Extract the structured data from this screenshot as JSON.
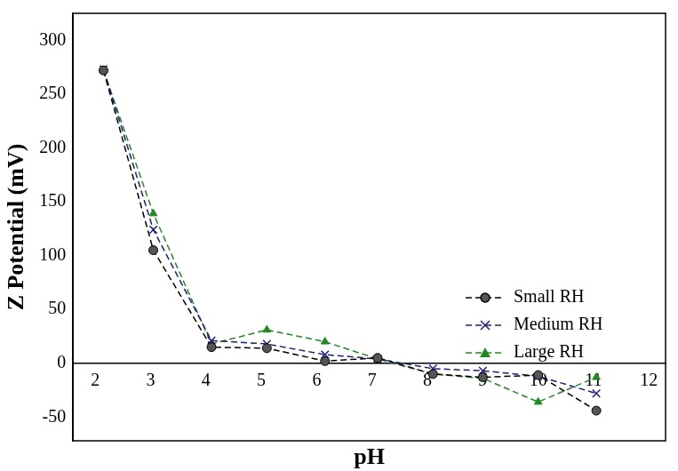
{
  "chart_data": {
    "type": "line",
    "x_label": "pH",
    "y_label": "Z Potential (mV)",
    "x": [
      2.15,
      3.05,
      4.1,
      5.1,
      6.15,
      7.1,
      8.1,
      9.0,
      10.0,
      11.05
    ],
    "series": [
      {
        "name": "Small RH",
        "color": "#000000",
        "marker": "circle",
        "line_style": "dashed",
        "values": [
          272,
          105,
          15,
          14,
          2,
          5,
          -10,
          -13,
          -11,
          -44
        ]
      },
      {
        "name": "Medium RH",
        "color": "#1c1c8c",
        "marker": "x",
        "line_style": "dashed",
        "values": [
          273,
          124,
          21,
          18,
          8,
          4,
          -5,
          -7,
          -12,
          -28
        ]
      },
      {
        "name": "Large RH",
        "color": "#1e8c1e",
        "marker": "triangle",
        "line_style": "dashed",
        "values": [
          272,
          139,
          18,
          31,
          20,
          4,
          -10,
          -14,
          -36,
          -13
        ]
      }
    ],
    "xlim": [
      1.6,
      12.3
    ],
    "ylim": [
      -72,
      325
    ],
    "xticks": [
      2,
      3,
      4,
      5,
      6,
      7,
      8,
      9,
      10,
      11,
      12
    ],
    "yticks": [
      -50,
      0,
      50,
      100,
      150,
      200,
      250,
      300
    ],
    "grid": false,
    "legend": "right"
  }
}
